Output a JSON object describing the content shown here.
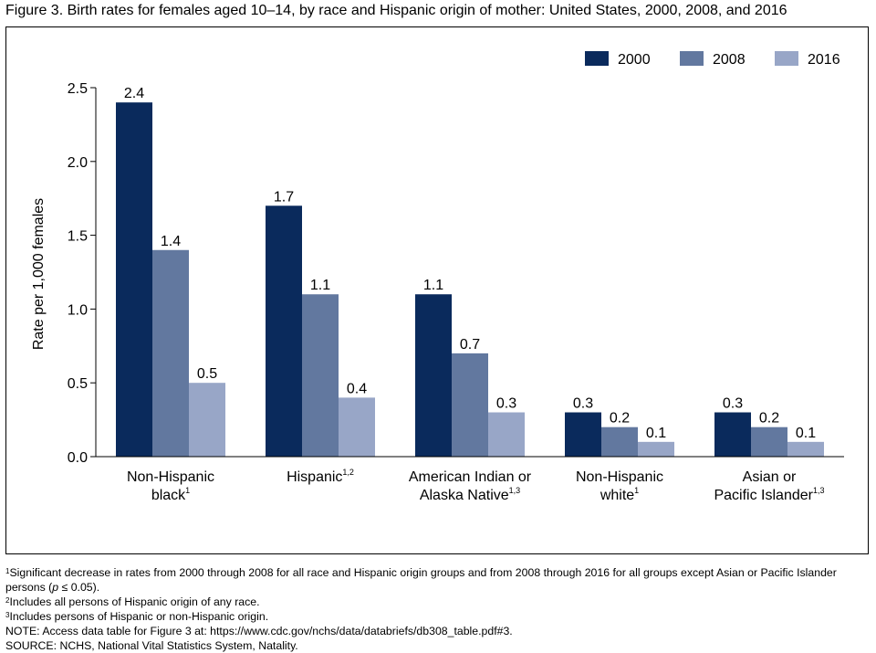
{
  "figure": {
    "title": "Figure 3. Birth rates for females aged 10–14, by race and Hispanic origin of mother: United States, 2000, 2008, and 2016"
  },
  "chart_data": {
    "type": "bar",
    "ylabel": "Rate per 1,000 females",
    "ylim": [
      0,
      2.5
    ],
    "yticks": [
      "0.0",
      "0.5",
      "1.0",
      "1.5",
      "2.0",
      "2.5"
    ],
    "legend_position": "top-right",
    "categories": [
      {
        "line1": "Non-Hispanic",
        "line2": "black",
        "sup": "1"
      },
      {
        "line1": "Hispanic",
        "line2": "",
        "sup": "1,2"
      },
      {
        "line1": "American Indian or",
        "line2": "Alaska Native",
        "sup": "1,3"
      },
      {
        "line1": "Non-Hispanic",
        "line2": "white",
        "sup": "1"
      },
      {
        "line1": "Asian or",
        "line2": "Pacific Islander",
        "sup": "1,3"
      }
    ],
    "series": [
      {
        "name": "2000",
        "color": "#0a2a5c",
        "values": [
          2.4,
          1.7,
          1.1,
          0.3,
          0.3
        ]
      },
      {
        "name": "2008",
        "color": "#62789f",
        "values": [
          1.4,
          1.1,
          0.7,
          0.2,
          0.2
        ]
      },
      {
        "name": "2016",
        "color": "#98a6c7",
        "values": [
          0.5,
          0.4,
          0.3,
          0.1,
          0.1
        ]
      }
    ]
  },
  "footnotes": {
    "fn1_sup": "1",
    "fn1_text_a": "Significant decrease in rates from 2000 through 2008 for all race and Hispanic origin groups and from 2008 through 2016 for all groups except Asian or Pacific Islander persons (",
    "fn1_p": "p",
    "fn1_text_b": " ≤ 0.05).",
    "fn2_sup": "2",
    "fn2_text": "Includes all persons of Hispanic origin of any race.",
    "fn3_sup": "3",
    "fn3_text": "Includes persons of Hispanic or non-Hispanic origin.",
    "note": "NOTE: Access data table for Figure 3 at: https://www.cdc.gov/nchs/data/databriefs/db308_table.pdf#3.",
    "source": "SOURCE: NCHS, National Vital Statistics System, Natality."
  }
}
